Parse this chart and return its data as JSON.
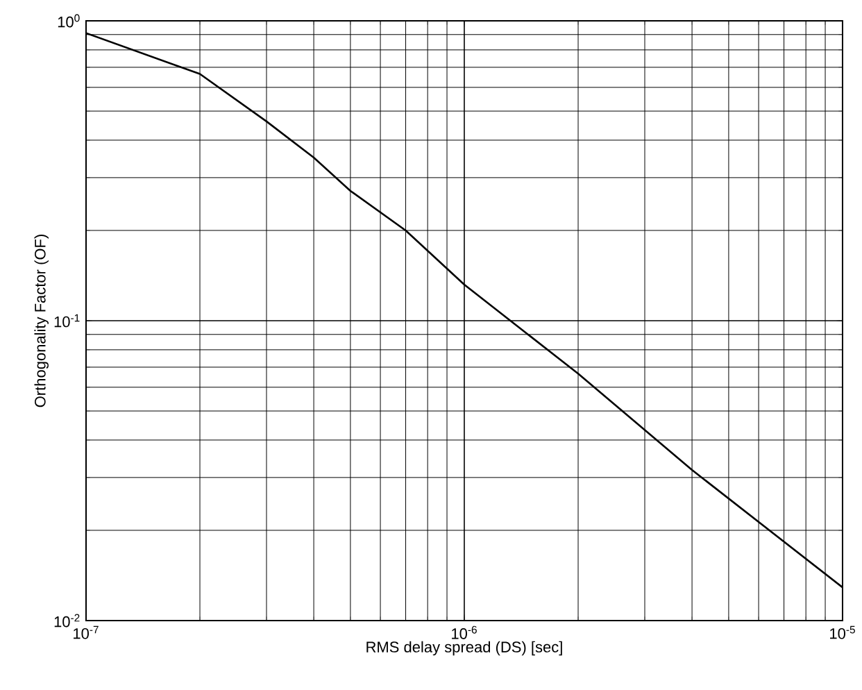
{
  "chart_data": {
    "type": "line",
    "xlabel": "RMS delay spread (DS) [sec]",
    "ylabel": "Orthogonality Factor (OF)",
    "x": [
      1e-07,
      2e-07,
      3e-07,
      4e-07,
      5e-07,
      7e-07,
      1e-06,
      2e-06,
      4e-06,
      1e-05
    ],
    "series": [
      {
        "color": "#000000",
        "values": [
          0.91,
          0.665,
          0.462,
          0.35,
          0.271,
          0.2,
          0.132,
          0.0666,
          0.0318,
          0.0129
        ]
      }
    ],
    "log": "xy",
    "xlim": [
      1e-07,
      1e-05
    ],
    "ylim": [
      0.01,
      1
    ],
    "xticks": [
      {
        "value": 1e-07,
        "label": "10$^{-7}$"
      },
      {
        "value": 1e-06,
        "label": "10$^{-6}$"
      },
      {
        "value": 1e-05,
        "label": "10$^{-5}$"
      }
    ],
    "yticks": [
      {
        "value": 0.01,
        "label": "10$^{-2}$"
      },
      {
        "value": 0.1,
        "label": "10$^{-1}$"
      },
      {
        "value": 1,
        "label": "10$^{0}$"
      }
    ],
    "grid": true,
    "marker": "none",
    "line_style": "solid"
  }
}
